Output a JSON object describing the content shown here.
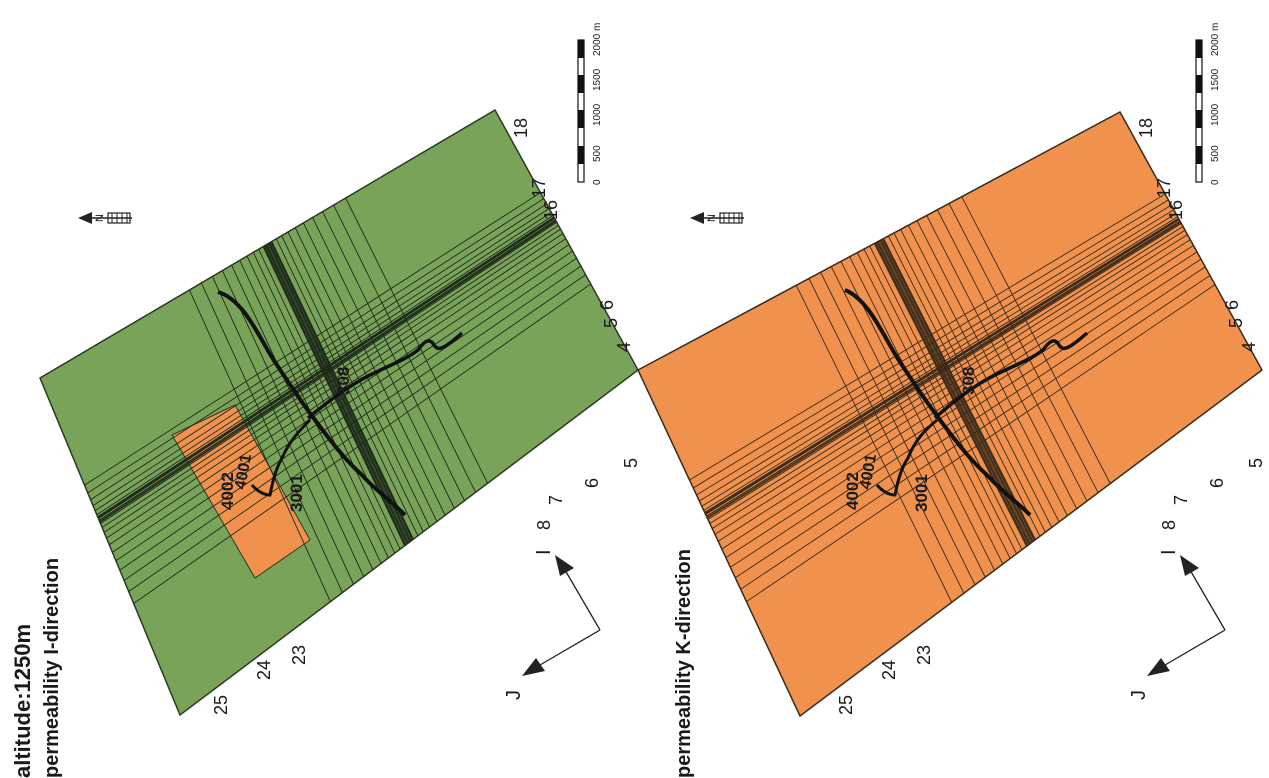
{
  "top_panel": {
    "title_line1": "altitude:1250m",
    "title_line2": "permeability I-direction",
    "grid_fill": "#7aa35a",
    "highlight_fill": "#f0924e"
  },
  "bottom_panel": {
    "title": "permeability K-direction",
    "grid_fill": "#f0924e"
  },
  "grid_labels": {
    "j_indices": [
      "25",
      "24",
      "23",
      "18",
      "17",
      "16"
    ],
    "i_indices": [
      "8",
      "7",
      "6",
      "5",
      "5",
      "4",
      "6"
    ]
  },
  "wells": [
    "4002",
    "4001",
    "3001",
    "308"
  ],
  "axes": {
    "i_label": "I",
    "j_label": "J"
  },
  "north_symbol": "N",
  "scale_bar": {
    "labels": [
      "0",
      "500",
      "1000",
      "1500",
      "2000 m"
    ]
  },
  "colors": {
    "line": "#1e2a1a",
    "tunnel": "#111111"
  }
}
